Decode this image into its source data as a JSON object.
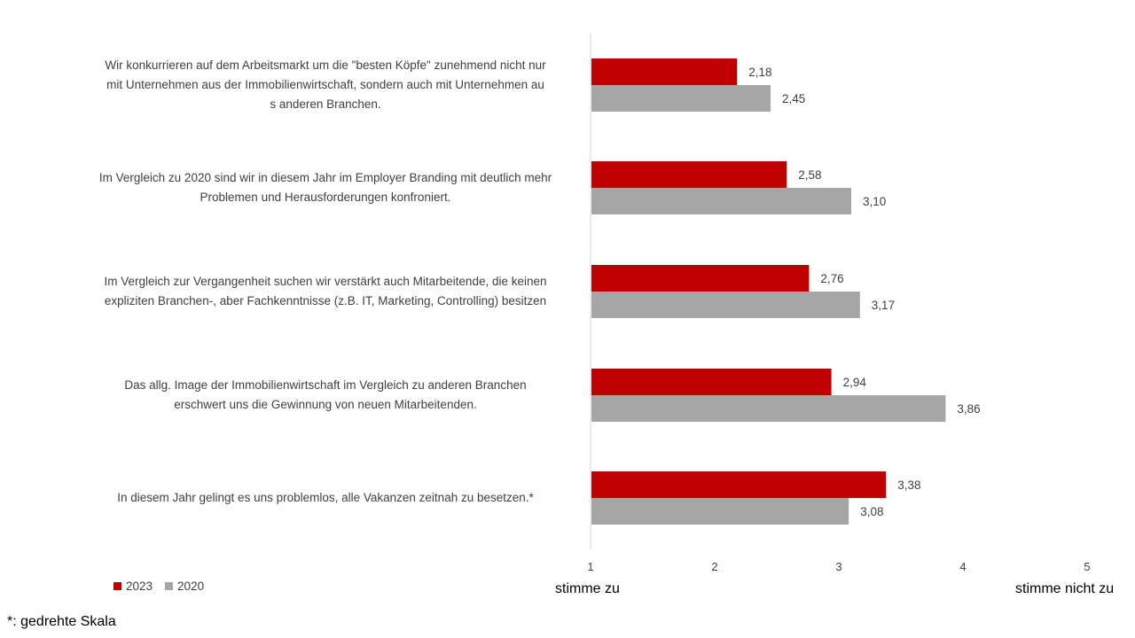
{
  "chart_data": {
    "type": "bar",
    "orientation": "horizontal",
    "categories": [
      "Wir konkurrieren auf dem Arbeitsmarkt um die \"besten Köpfe\" zunehmend nicht nur mit Unternehmen aus der Immobilienwirtschaft, sondern auch mit Unternehmen aus anderen Branchen.",
      "Im Vergleich zu 2020 sind wir in diesem Jahr im Employer Branding mit deutlich mehr Problemen und Herausforderungen konfroniert.",
      "Im Vergleich zur Vergangenheit suchen wir verstärkt auch Mitarbeitende, die keinen expliziten Branchen-, aber Fachkenntnisse (z.B. IT, Marketing, Controlling) besitzen",
      "Das allg. Image der Immobilienwirtschaft im Vergleich zu anderen Branchen erschwert uns die Gewinnung von neuen Mitarbeitenden.",
      "In diesem Jahr gelingt es uns problemlos, alle Vakanzen zeitnah zu besetzen.*"
    ],
    "series": [
      {
        "name": "2023",
        "values": [
          2.18,
          2.58,
          2.76,
          2.94,
          3.38
        ],
        "labels": [
          "2,18",
          "2,58",
          "2,76",
          "2,94",
          "3,38"
        ],
        "color": "#C00000"
      },
      {
        "name": "2020",
        "values": [
          2.45,
          3.1,
          3.17,
          3.86,
          3.08
        ],
        "labels": [
          "2,45",
          "3,10",
          "3,17",
          "3,86",
          "3,08"
        ],
        "color": "#A6A6A6"
      }
    ],
    "xlim": [
      1,
      5
    ],
    "ticks": [
      "1",
      "2",
      "3",
      "4",
      "5"
    ],
    "legend_position": "bottom-left",
    "grid": false
  },
  "axis_text": {
    "left_end": "stimme zu",
    "right_end": "stimme nicht zu"
  },
  "footnote": "*: gedrehte Skala"
}
